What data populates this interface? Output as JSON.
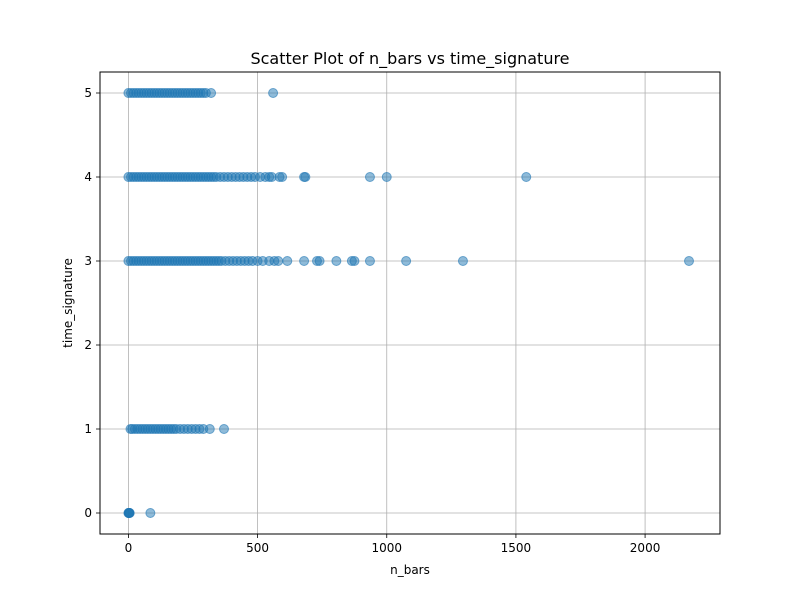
{
  "chart_data": {
    "type": "scatter",
    "title": "Scatter Plot of n_bars vs time_signature",
    "xlabel": "n_bars",
    "ylabel": "time_signature",
    "xlim": [
      -110,
      2290
    ],
    "ylim": [
      -0.25,
      5.25
    ],
    "xticks": [
      0,
      500,
      1000,
      1500,
      2000
    ],
    "yticks": [
      0,
      1,
      2,
      3,
      4,
      5
    ],
    "grid": true,
    "legend": "none",
    "point_color": "#1f77b4",
    "point_alpha": 0.5,
    "points": [
      [
        0,
        0
      ],
      [
        1,
        0
      ],
      [
        2,
        0
      ],
      [
        3,
        0
      ],
      [
        4,
        0
      ],
      [
        5,
        0
      ],
      [
        85,
        0
      ],
      [
        8,
        1
      ],
      [
        15,
        1
      ],
      [
        25,
        1
      ],
      [
        35,
        1
      ],
      [
        45,
        1
      ],
      [
        55,
        1
      ],
      [
        65,
        1
      ],
      [
        75,
        1
      ],
      [
        85,
        1
      ],
      [
        95,
        1
      ],
      [
        105,
        1
      ],
      [
        115,
        1
      ],
      [
        125,
        1
      ],
      [
        135,
        1
      ],
      [
        145,
        1
      ],
      [
        155,
        1
      ],
      [
        165,
        1
      ],
      [
        175,
        1
      ],
      [
        185,
        1
      ],
      [
        200,
        1
      ],
      [
        215,
        1
      ],
      [
        230,
        1
      ],
      [
        245,
        1
      ],
      [
        260,
        1
      ],
      [
        275,
        1
      ],
      [
        290,
        1
      ],
      [
        315,
        1
      ],
      [
        370,
        1
      ],
      [
        0,
        3
      ],
      [
        10,
        3
      ],
      [
        20,
        3
      ],
      [
        30,
        3
      ],
      [
        40,
        3
      ],
      [
        50,
        3
      ],
      [
        60,
        3
      ],
      [
        70,
        3
      ],
      [
        80,
        3
      ],
      [
        90,
        3
      ],
      [
        100,
        3
      ],
      [
        110,
        3
      ],
      [
        120,
        3
      ],
      [
        130,
        3
      ],
      [
        140,
        3
      ],
      [
        150,
        3
      ],
      [
        160,
        3
      ],
      [
        170,
        3
      ],
      [
        180,
        3
      ],
      [
        190,
        3
      ],
      [
        200,
        3
      ],
      [
        210,
        3
      ],
      [
        220,
        3
      ],
      [
        230,
        3
      ],
      [
        240,
        3
      ],
      [
        250,
        3
      ],
      [
        260,
        3
      ],
      [
        270,
        3
      ],
      [
        280,
        3
      ],
      [
        290,
        3
      ],
      [
        300,
        3
      ],
      [
        310,
        3
      ],
      [
        320,
        3
      ],
      [
        330,
        3
      ],
      [
        340,
        3
      ],
      [
        350,
        3
      ],
      [
        360,
        3
      ],
      [
        375,
        3
      ],
      [
        390,
        3
      ],
      [
        405,
        3
      ],
      [
        420,
        3
      ],
      [
        435,
        3
      ],
      [
        450,
        3
      ],
      [
        465,
        3
      ],
      [
        480,
        3
      ],
      [
        500,
        3
      ],
      [
        520,
        3
      ],
      [
        545,
        3
      ],
      [
        565,
        3
      ],
      [
        580,
        3
      ],
      [
        615,
        3
      ],
      [
        680,
        3
      ],
      [
        730,
        3
      ],
      [
        740,
        3
      ],
      [
        805,
        3
      ],
      [
        865,
        3
      ],
      [
        875,
        3
      ],
      [
        935,
        3
      ],
      [
        1075,
        3
      ],
      [
        1295,
        3
      ],
      [
        2170,
        3
      ],
      [
        0,
        4
      ],
      [
        10,
        4
      ],
      [
        20,
        4
      ],
      [
        30,
        4
      ],
      [
        40,
        4
      ],
      [
        50,
        4
      ],
      [
        60,
        4
      ],
      [
        70,
        4
      ],
      [
        80,
        4
      ],
      [
        90,
        4
      ],
      [
        100,
        4
      ],
      [
        110,
        4
      ],
      [
        120,
        4
      ],
      [
        130,
        4
      ],
      [
        140,
        4
      ],
      [
        150,
        4
      ],
      [
        160,
        4
      ],
      [
        170,
        4
      ],
      [
        180,
        4
      ],
      [
        190,
        4
      ],
      [
        200,
        4
      ],
      [
        210,
        4
      ],
      [
        220,
        4
      ],
      [
        230,
        4
      ],
      [
        240,
        4
      ],
      [
        250,
        4
      ],
      [
        260,
        4
      ],
      [
        270,
        4
      ],
      [
        280,
        4
      ],
      [
        290,
        4
      ],
      [
        300,
        4
      ],
      [
        310,
        4
      ],
      [
        320,
        4
      ],
      [
        330,
        4
      ],
      [
        340,
        4
      ],
      [
        355,
        4
      ],
      [
        370,
        4
      ],
      [
        385,
        4
      ],
      [
        400,
        4
      ],
      [
        415,
        4
      ],
      [
        430,
        4
      ],
      [
        445,
        4
      ],
      [
        460,
        4
      ],
      [
        475,
        4
      ],
      [
        490,
        4
      ],
      [
        510,
        4
      ],
      [
        530,
        4
      ],
      [
        545,
        4
      ],
      [
        555,
        4
      ],
      [
        585,
        4
      ],
      [
        595,
        4
      ],
      [
        680,
        4
      ],
      [
        685,
        4
      ],
      [
        935,
        4
      ],
      [
        1000,
        4
      ],
      [
        1540,
        4
      ],
      [
        0,
        5
      ],
      [
        10,
        5
      ],
      [
        20,
        5
      ],
      [
        30,
        5
      ],
      [
        40,
        5
      ],
      [
        50,
        5
      ],
      [
        60,
        5
      ],
      [
        70,
        5
      ],
      [
        80,
        5
      ],
      [
        90,
        5
      ],
      [
        100,
        5
      ],
      [
        110,
        5
      ],
      [
        120,
        5
      ],
      [
        130,
        5
      ],
      [
        140,
        5
      ],
      [
        150,
        5
      ],
      [
        160,
        5
      ],
      [
        170,
        5
      ],
      [
        180,
        5
      ],
      [
        190,
        5
      ],
      [
        200,
        5
      ],
      [
        210,
        5
      ],
      [
        220,
        5
      ],
      [
        230,
        5
      ],
      [
        240,
        5
      ],
      [
        250,
        5
      ],
      [
        260,
        5
      ],
      [
        270,
        5
      ],
      [
        280,
        5
      ],
      [
        290,
        5
      ],
      [
        300,
        5
      ],
      [
        320,
        5
      ],
      [
        560,
        5
      ]
    ]
  }
}
